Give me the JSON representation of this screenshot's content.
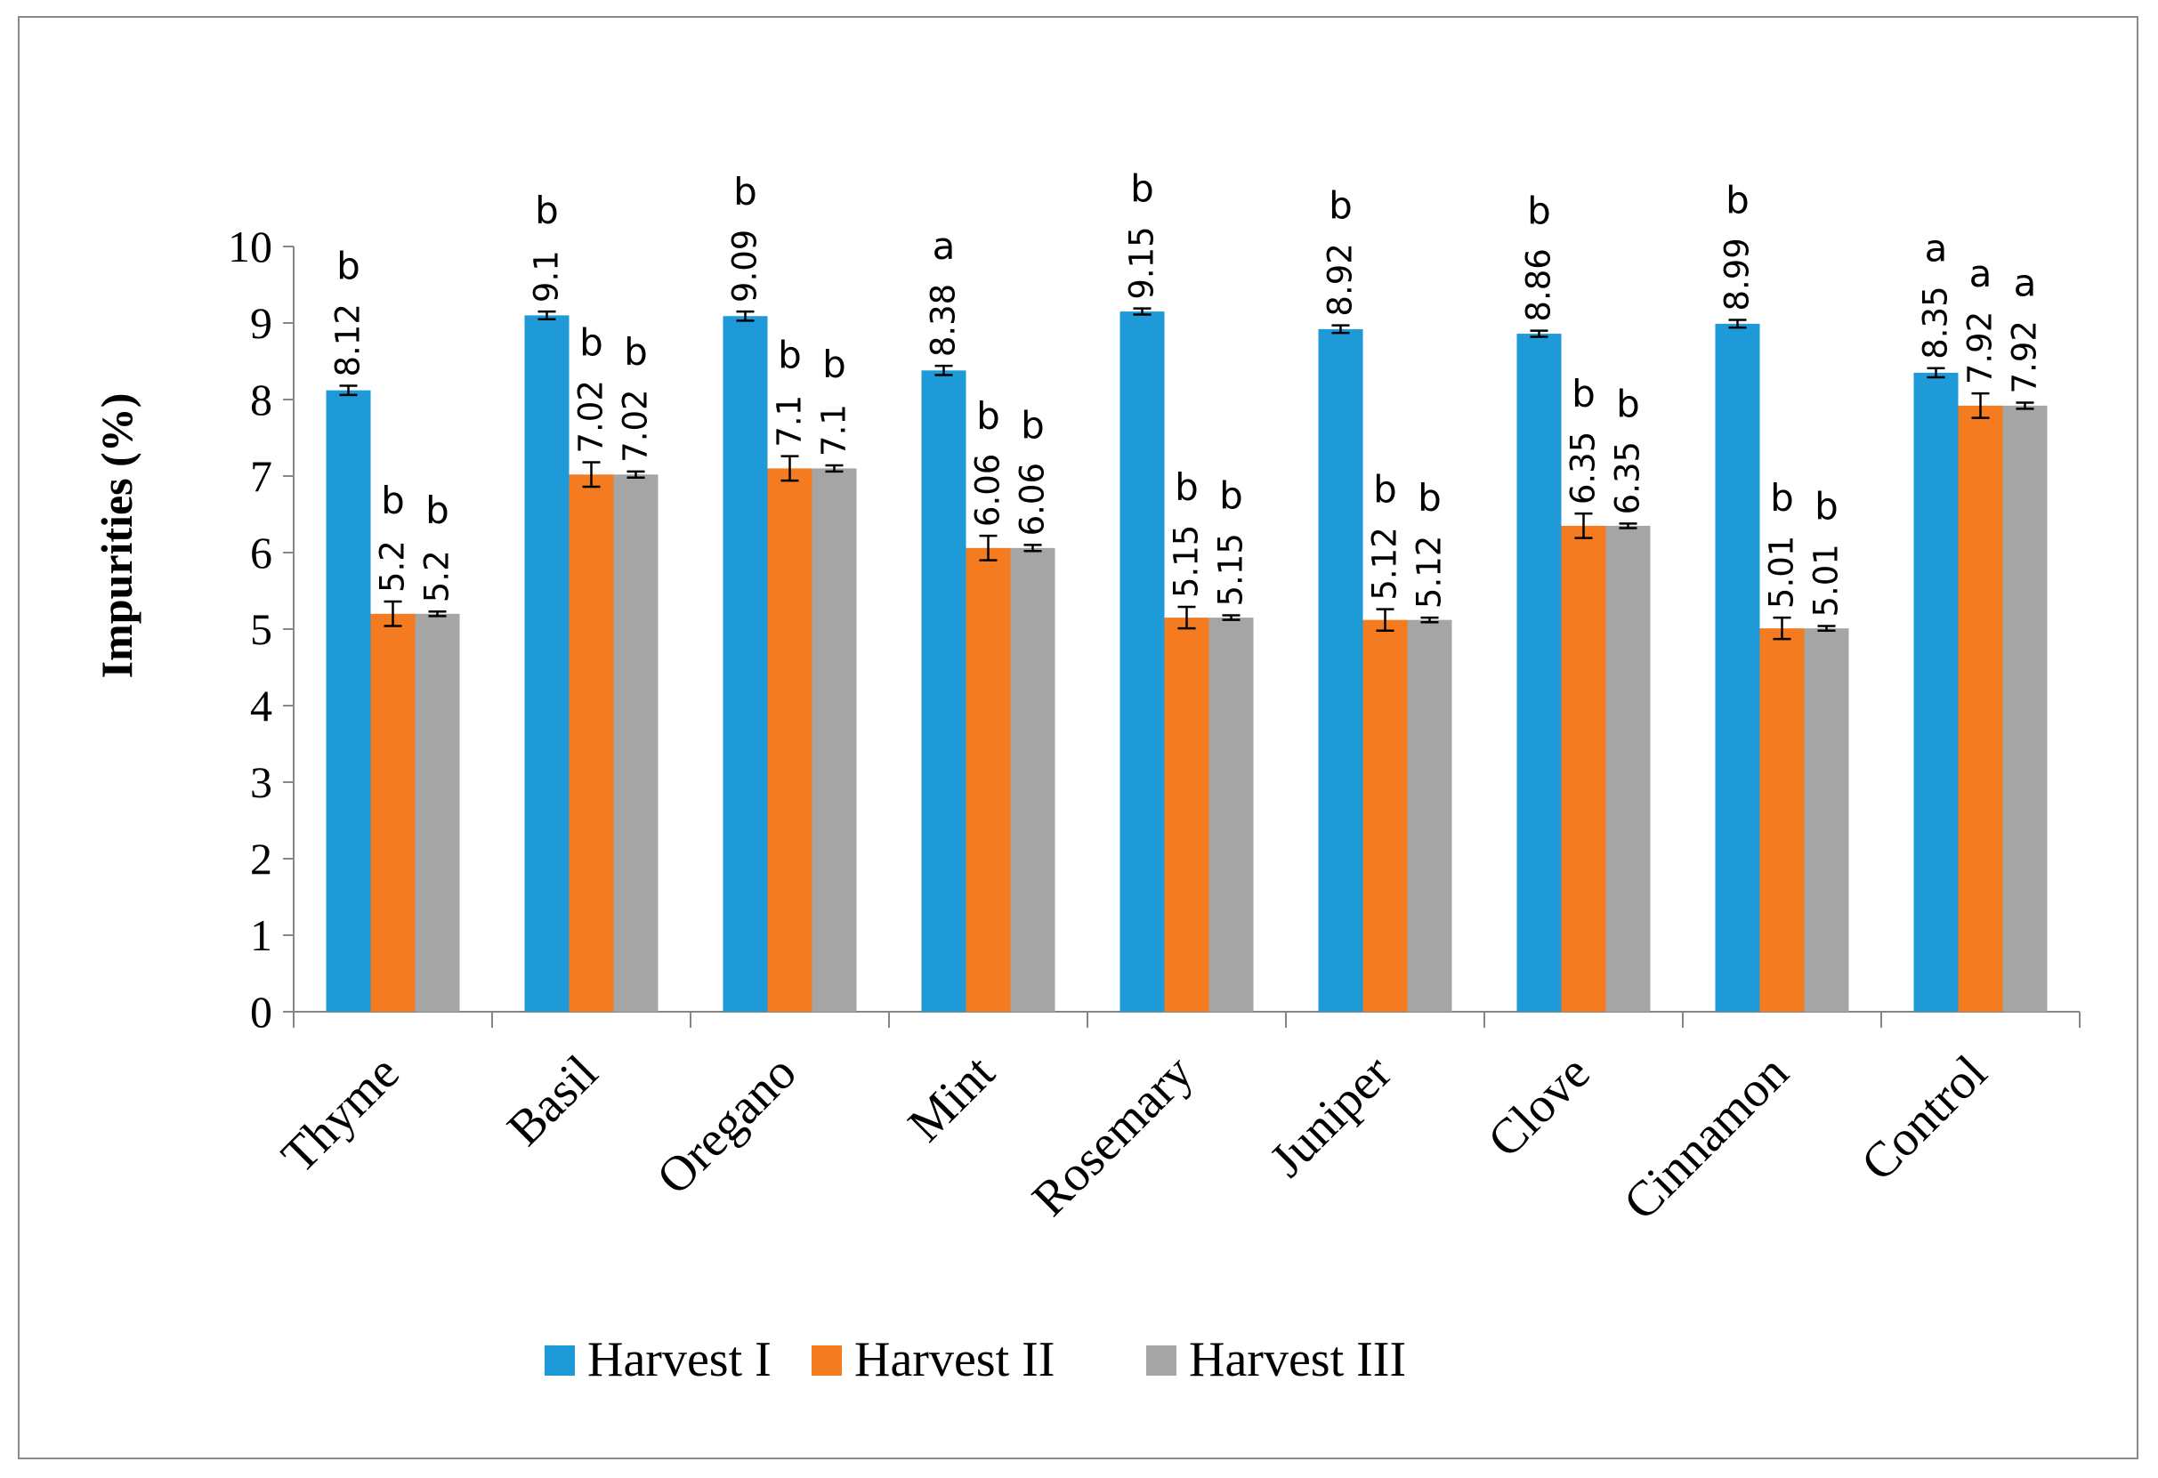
{
  "chart_data": {
    "type": "bar",
    "title": "",
    "xlabel": "",
    "ylabel": "Impurities (%)",
    "ylim": [
      0,
      10
    ],
    "yticks": [
      0,
      1,
      2,
      3,
      4,
      5,
      6,
      7,
      8,
      9,
      10
    ],
    "grid": false,
    "legend_position": "bottom",
    "categories": [
      "Thyme",
      "Basil",
      "Oregano",
      "Mint",
      "Rosemary",
      "Juniper",
      "Clove",
      "Cinnamon",
      "Control"
    ],
    "series": [
      {
        "name": "Harvest I",
        "color": "#1f9ad8",
        "values": [
          8.12,
          9.1,
          9.09,
          8.38,
          9.15,
          8.92,
          8.86,
          8.99,
          8.35
        ],
        "labels": [
          "8.12",
          "9.1",
          "9.09",
          "8.38",
          "9.15",
          "8.92",
          "8.86",
          "8.99",
          "8.35"
        ],
        "errors": [
          0.06,
          0.05,
          0.06,
          0.06,
          0.04,
          0.05,
          0.04,
          0.05,
          0.06
        ],
        "letters": [
          "b",
          "b",
          "b",
          "a",
          "b",
          "b",
          "b",
          "b",
          "a"
        ]
      },
      {
        "name": "Harvest II",
        "color": "#f47b20",
        "values": [
          5.2,
          7.02,
          7.1,
          6.06,
          5.15,
          5.12,
          6.35,
          5.01,
          7.92
        ],
        "labels": [
          "5.2",
          "7.02",
          "7.1",
          "6.06",
          "5.15",
          "5.12",
          "6.35",
          "5.01",
          "7.92"
        ],
        "errors": [
          0.16,
          0.16,
          0.16,
          0.16,
          0.14,
          0.14,
          0.16,
          0.14,
          0.16
        ],
        "letters": [
          "b",
          "b",
          "b",
          "b",
          "b",
          "b",
          "b",
          "b",
          "a"
        ]
      },
      {
        "name": "Harvest III",
        "color": "#a5a5a5",
        "values": [
          5.2,
          7.02,
          7.1,
          6.06,
          5.15,
          5.12,
          6.35,
          5.01,
          7.92
        ],
        "labels": [
          "5.2",
          "7.02",
          "7.1",
          "6.06",
          "5.15",
          "5.12",
          "6.35",
          "5.01",
          "7.92"
        ],
        "errors": [
          0.03,
          0.04,
          0.04,
          0.04,
          0.03,
          0.03,
          0.03,
          0.03,
          0.04
        ],
        "letters": [
          "b",
          "b",
          "b",
          "b",
          "b",
          "b",
          "b",
          "b",
          "a"
        ]
      }
    ]
  }
}
